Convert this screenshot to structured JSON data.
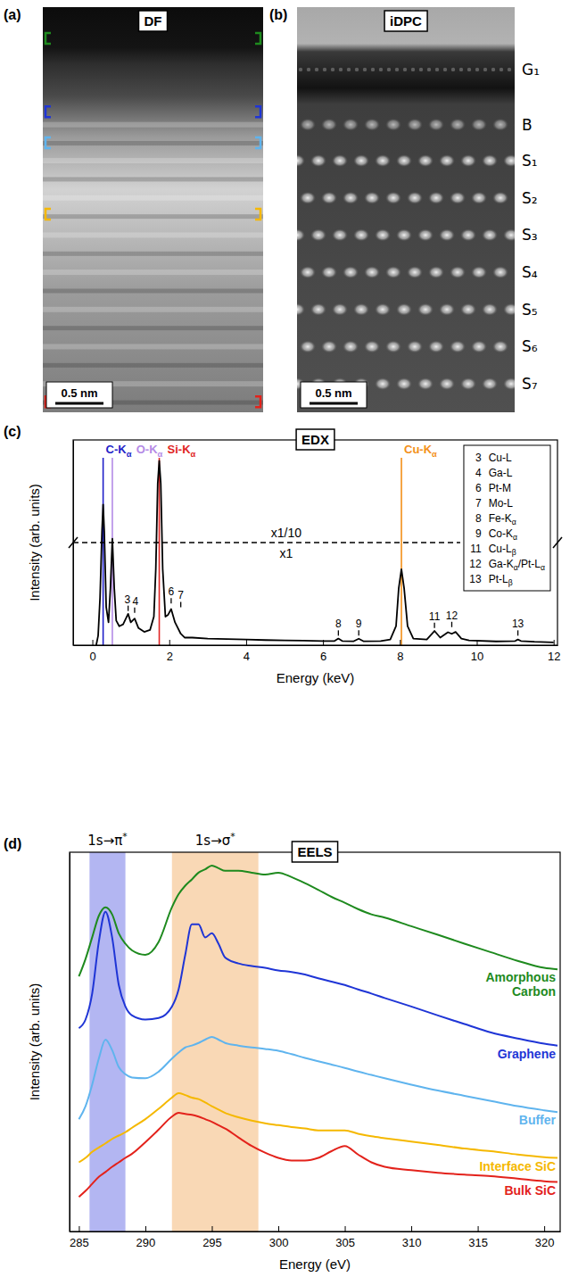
{
  "images": [
    {
      "panel_label": "(a)",
      "label": "DF",
      "scale_bar": "0.5 nm"
    },
    {
      "panel_label": "(b)",
      "label": "iDPC",
      "scale_bar": "0.5 nm",
      "layers": [
        "G₁",
        "B",
        "S₁",
        "S₂",
        "S₃",
        "S₄",
        "S₅",
        "S₆",
        "S₇"
      ]
    }
  ],
  "chart_data": [
    {
      "type": "line",
      "panel_label": "(c)",
      "title": "EDX",
      "x_label": "Energy (keV)",
      "y_label": "Intensity (arb. units)",
      "xlim": [
        -0.5,
        12.1
      ],
      "ylim": [
        0,
        1.08
      ],
      "xticks": [
        0,
        2,
        4,
        6,
        8,
        10,
        12
      ],
      "tick_labels": "x",
      "legend": "top-right",
      "color": "#000000",
      "x": [
        0.1,
        0.15,
        0.2,
        0.25,
        0.28,
        0.31,
        0.36,
        0.42,
        0.47,
        0.52,
        0.57,
        0.62,
        0.7,
        0.8,
        0.93,
        1.0,
        1.1,
        1.2,
        1.35,
        1.5,
        1.6,
        1.65,
        1.7,
        1.74,
        1.78,
        1.83,
        1.9,
        1.97,
        2.05,
        2.15,
        2.3,
        2.4,
        2.6,
        3,
        3.5,
        4,
        4.5,
        5,
        5.5,
        6,
        6.3,
        6.4,
        6.5,
        6.8,
        6.93,
        7.05,
        7.5,
        7.75,
        7.9,
        7.97,
        8.04,
        8.11,
        8.2,
        8.35,
        8.7,
        8.9,
        9.05,
        9.25,
        9.35,
        9.45,
        9.6,
        9.8,
        10.5,
        11,
        11.07,
        11.15,
        11.5,
        12
      ],
      "values": [
        0,
        0.05,
        0.25,
        0.6,
        0.74,
        0.6,
        0.2,
        0.12,
        0.3,
        0.56,
        0.3,
        0.13,
        0.1,
        0.11,
        0.165,
        0.12,
        0.14,
        0.09,
        0.07,
        0.08,
        0.15,
        0.4,
        0.85,
        0.97,
        0.85,
        0.4,
        0.15,
        0.16,
        0.19,
        0.12,
        0.06,
        0.04,
        0.04,
        0.035,
        0.032,
        0.03,
        0.027,
        0.025,
        0.024,
        0.022,
        0.022,
        0.035,
        0.022,
        0.021,
        0.034,
        0.021,
        0.022,
        0.03,
        0.1,
        0.3,
        0.4,
        0.3,
        0.1,
        0.035,
        0.03,
        0.075,
        0.04,
        0.068,
        0.06,
        0.07,
        0.035,
        0.025,
        0.02,
        0.022,
        0.03,
        0.022,
        0.018,
        0.015
      ],
      "reference_lines": [
        {
          "label": "C-Kα",
          "x": 0.28,
          "color": "#1f1fc8"
        },
        {
          "label": "O-Kα",
          "x": 0.52,
          "color": "#b48ae6"
        },
        {
          "label": "Si-Kα",
          "x": 1.74,
          "color": "#e02424"
        },
        {
          "label": "Cu-Kα",
          "x": 8.04,
          "color": "#f39019"
        }
      ],
      "peaks": [
        {
          "number": 3,
          "name": "Cu-L",
          "x": 0.93,
          "y": 0.18
        },
        {
          "number": 4,
          "name": "Ga-L",
          "x": 1.1,
          "y": 0.17
        },
        {
          "number": 6,
          "name": "Pt-M",
          "x": 2.05,
          "y": 0.22
        },
        {
          "number": 7,
          "name": "Mo-L",
          "x": 2.3,
          "y": 0.2
        },
        {
          "number": 8,
          "name": "Fe-Kα",
          "x": 6.4,
          "y": 0.05
        },
        {
          "number": 9,
          "name": "Co-Kα",
          "x": 6.93,
          "y": 0.05
        },
        {
          "number": 11,
          "name": "Cu-Lβ",
          "x": 8.9,
          "y": 0.09
        },
        {
          "number": 12,
          "name": "Ga-Kα/Pt-Lα",
          "x": 9.35,
          "y": 0.095
        },
        {
          "number": 13,
          "name": "Pt-Lβ",
          "x": 11.07,
          "y": 0.05
        }
      ],
      "break": {
        "value": 0.54,
        "labels": [
          "x1/10",
          "x1"
        ]
      }
    },
    {
      "type": "line",
      "panel_label": "(d)",
      "title": "EELS",
      "x_label": "Energy (eV)",
      "y_label": "Intensity (arb. units)",
      "xlim": [
        284.3,
        321.2
      ],
      "ylim": [
        0,
        10.2
      ],
      "xticks": [
        285,
        290,
        295,
        300,
        305,
        310,
        315,
        320
      ],
      "tick_labels": "x",
      "bands": [
        {
          "label": "1s→π*",
          "x0": 285.8,
          "x1": 288.5,
          "color": "#b3b6f2"
        },
        {
          "label": "1s→σ*",
          "x0": 292,
          "x1": 298.5,
          "color": "#f9d8b5"
        }
      ],
      "x": [
        285,
        285.5,
        286,
        286.5,
        287,
        287.5,
        288,
        288.5,
        289,
        290,
        291,
        292,
        292.5,
        293,
        293.5,
        294,
        294.5,
        295,
        295.5,
        296,
        297,
        298,
        299,
        300,
        301,
        302,
        303,
        304,
        305,
        306,
        307,
        308,
        310,
        312,
        314,
        316,
        318,
        320,
        321
      ],
      "series": [
        {
          "name": "Amorphous Carbon",
          "color": "#1e8a1e",
          "values": [
            6.86,
            7.33,
            7.91,
            8.49,
            8.72,
            8.53,
            8.02,
            7.74,
            7.56,
            7.44,
            7.79,
            8.72,
            9.07,
            9.3,
            9.47,
            9.65,
            9.74,
            9.84,
            9.77,
            9.7,
            9.7,
            9.65,
            9.6,
            9.65,
            9.53,
            9.37,
            9.19,
            9.0,
            8.84,
            8.67,
            8.53,
            8.44,
            8.21,
            7.98,
            7.74,
            7.51,
            7.28,
            7.09,
            7.05
          ]
        },
        {
          "name": "Graphene",
          "color": "#1f35d6",
          "values": [
            5.47,
            5.7,
            6.4,
            7.79,
            8.6,
            7.91,
            6.63,
            6.05,
            5.81,
            5.7,
            5.74,
            6.05,
            6.51,
            7.44,
            8.26,
            8.26,
            7.91,
            8.02,
            7.74,
            7.37,
            7.21,
            7.14,
            7.09,
            7.02,
            6.98,
            6.91,
            6.81,
            6.72,
            6.63,
            6.51,
            6.4,
            6.28,
            6.05,
            5.81,
            5.58,
            5.35,
            5.19,
            5.05,
            5.0
          ]
        },
        {
          "name": "Buffer",
          "color": "#5fb4ee",
          "values": [
            3.02,
            3.37,
            3.95,
            4.65,
            5.16,
            4.88,
            4.42,
            4.23,
            4.14,
            4.12,
            4.3,
            4.65,
            4.81,
            4.95,
            5.0,
            5.07,
            5.16,
            5.23,
            5.16,
            5.07,
            5.0,
            4.95,
            4.91,
            4.86,
            4.77,
            4.67,
            4.58,
            4.49,
            4.4,
            4.3,
            4.21,
            4.12,
            3.95,
            3.79,
            3.65,
            3.51,
            3.37,
            3.26,
            3.21
          ]
        },
        {
          "name": "Interface SiC",
          "color": "#f5b800",
          "values": [
            1.86,
            1.98,
            2.14,
            2.26,
            2.37,
            2.49,
            2.58,
            2.67,
            2.79,
            3.02,
            3.3,
            3.6,
            3.72,
            3.67,
            3.6,
            3.56,
            3.47,
            3.37,
            3.28,
            3.19,
            3.07,
            2.98,
            2.91,
            2.86,
            2.81,
            2.77,
            2.72,
            2.72,
            2.72,
            2.63,
            2.56,
            2.51,
            2.42,
            2.33,
            2.23,
            2.16,
            2.07,
            2.0,
            1.98
          ]
        },
        {
          "name": "Bulk SiC",
          "color": "#e3221b",
          "values": [
            0.93,
            1.09,
            1.28,
            1.47,
            1.6,
            1.74,
            1.86,
            1.98,
            2.09,
            2.4,
            2.74,
            3.09,
            3.19,
            3.16,
            3.14,
            3.09,
            3.02,
            2.95,
            2.86,
            2.77,
            2.53,
            2.3,
            2.12,
            1.98,
            1.91,
            1.91,
            1.98,
            2.16,
            2.3,
            2.07,
            1.86,
            1.74,
            1.65,
            1.58,
            1.53,
            1.49,
            1.42,
            1.35,
            1.33
          ]
        }
      ]
    }
  ]
}
